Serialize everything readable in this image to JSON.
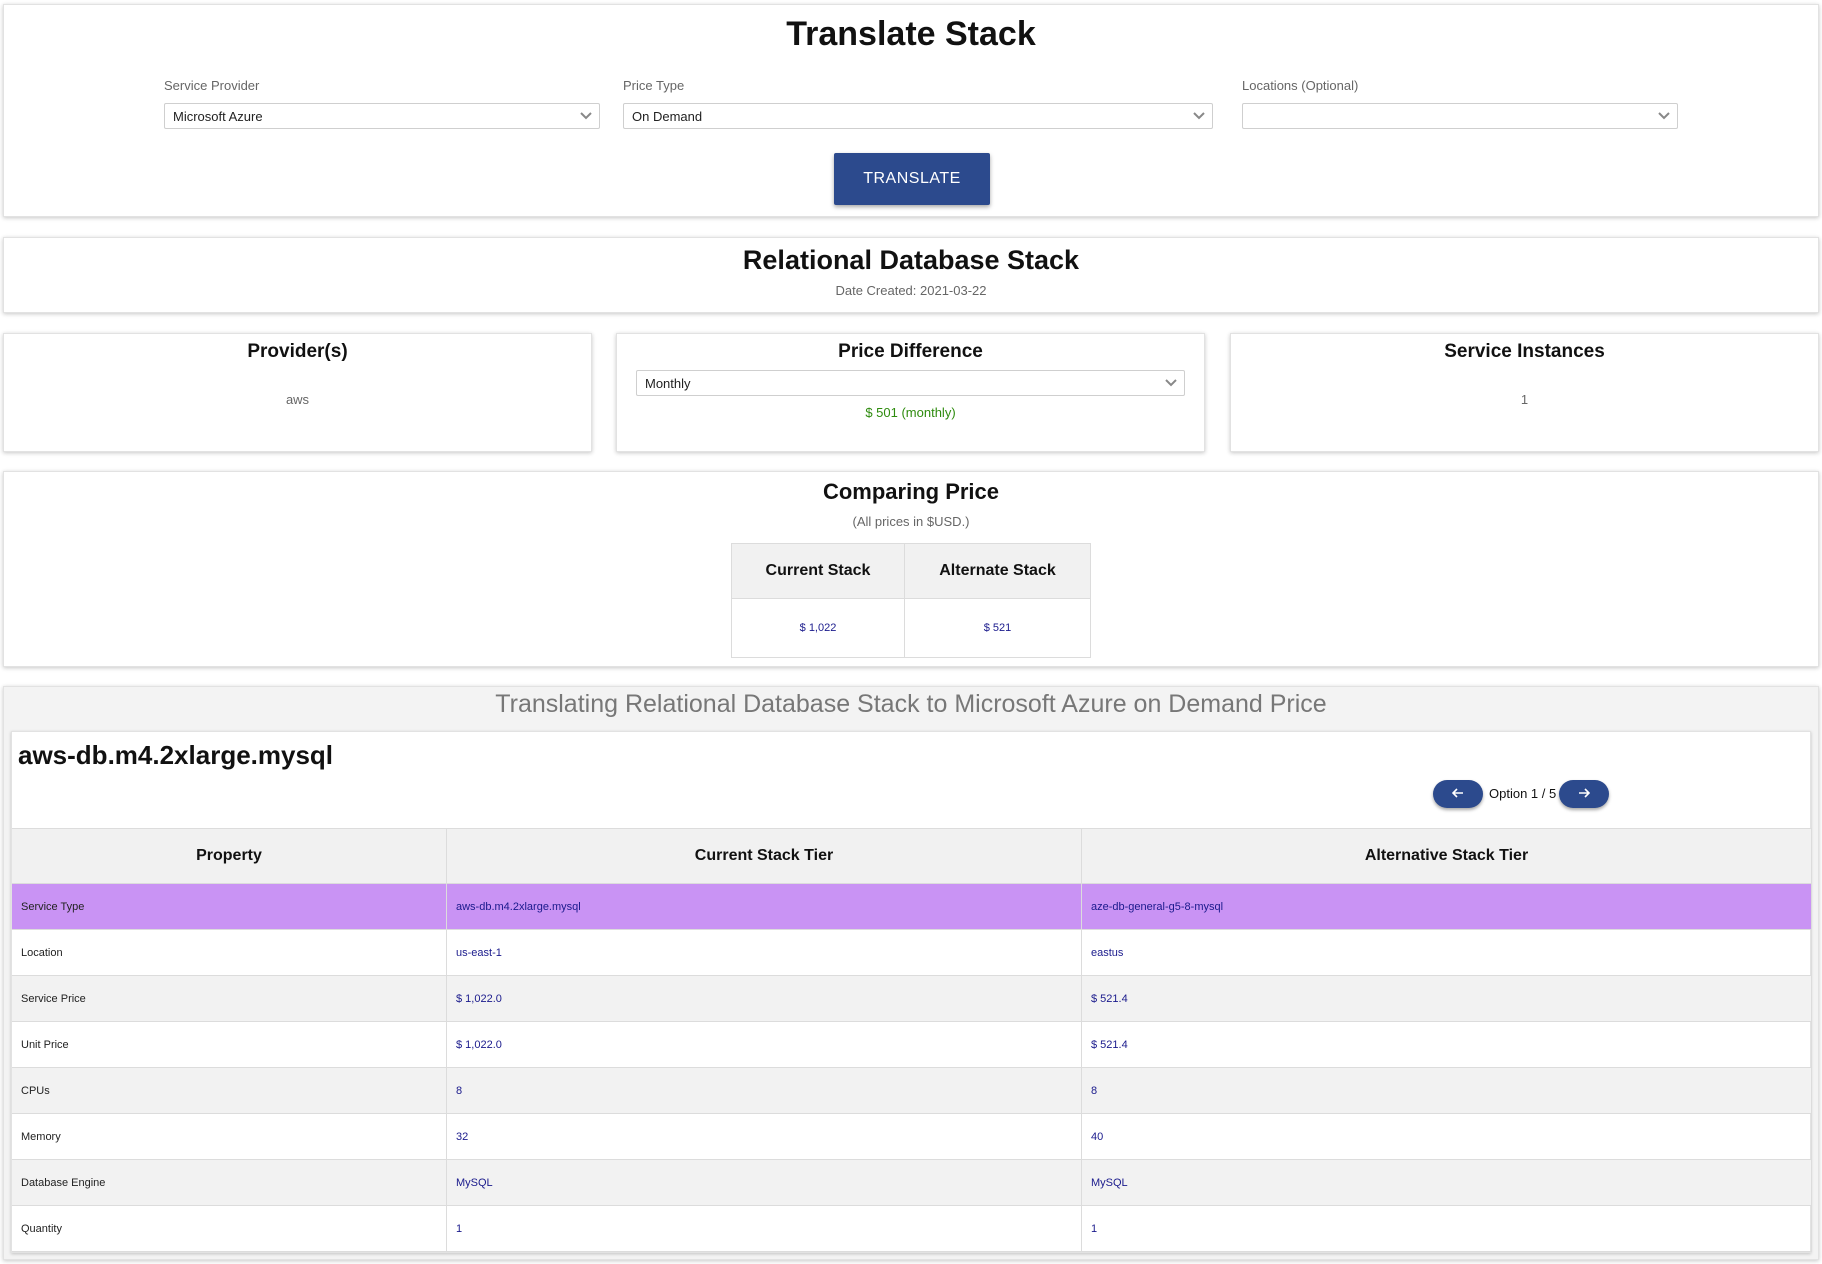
{
  "header": {
    "title": "Translate Stack",
    "service_provider": {
      "label": "Service Provider",
      "value": "Microsoft Azure"
    },
    "price_type": {
      "label": "Price Type",
      "value": "On Demand"
    },
    "locations": {
      "label": "Locations (Optional)",
      "value": ""
    },
    "translate_label": "TRANSLATE"
  },
  "stack": {
    "title": "Relational Database Stack",
    "date_created": "Date Created: 2021-03-22"
  },
  "summary": {
    "providers": {
      "title": "Provider(s)",
      "value": "aws"
    },
    "price_difference": {
      "title": "Price Difference",
      "period": "Monthly",
      "value": "$ 501 (monthly)"
    },
    "service_instances": {
      "title": "Service Instances",
      "value": "1"
    }
  },
  "comparing": {
    "title": "Comparing Price",
    "subtitle": "(All prices in $USD.)",
    "headers": [
      "Current Stack",
      "Alternate Stack"
    ],
    "values": [
      "$ 1,022",
      "$ 521"
    ]
  },
  "translation": {
    "title": "Translating Relational Database Stack to Microsoft Azure on Demand Price",
    "service_name": "aws-db.m4.2xlarge.mysql",
    "option_text": "Option 1 / 5",
    "headers": [
      "Property",
      "Current Stack Tier",
      "Alternative Stack Tier"
    ],
    "rows": [
      {
        "property": "Service Type",
        "current": "aws-db.m4.2xlarge.mysql",
        "alternative": "aze-db-general-g5-8-mysql"
      },
      {
        "property": "Location",
        "current": "us-east-1",
        "alternative": "eastus"
      },
      {
        "property": "Service Price",
        "current": "$ 1,022.0",
        "alternative": "$ 521.4"
      },
      {
        "property": "Unit Price",
        "current": "$ 1,022.0",
        "alternative": "$ 521.4"
      },
      {
        "property": "CPUs",
        "current": "8",
        "alternative": "8"
      },
      {
        "property": "Memory",
        "current": "32",
        "alternative": "40"
      },
      {
        "property": "Database Engine",
        "current": "MySQL",
        "alternative": "MySQL"
      },
      {
        "property": "Quantity",
        "current": "1",
        "alternative": "1"
      }
    ]
  },
  "colors": {
    "accent": "#2c4a8d",
    "highlight_row": "#c993f4",
    "price_green": "#2e8b0e",
    "value_blue": "#1a1a8c"
  },
  "icons": {
    "dropdown": "chevron-down-icon",
    "prev": "arrow-left-icon",
    "next": "arrow-right-icon"
  }
}
